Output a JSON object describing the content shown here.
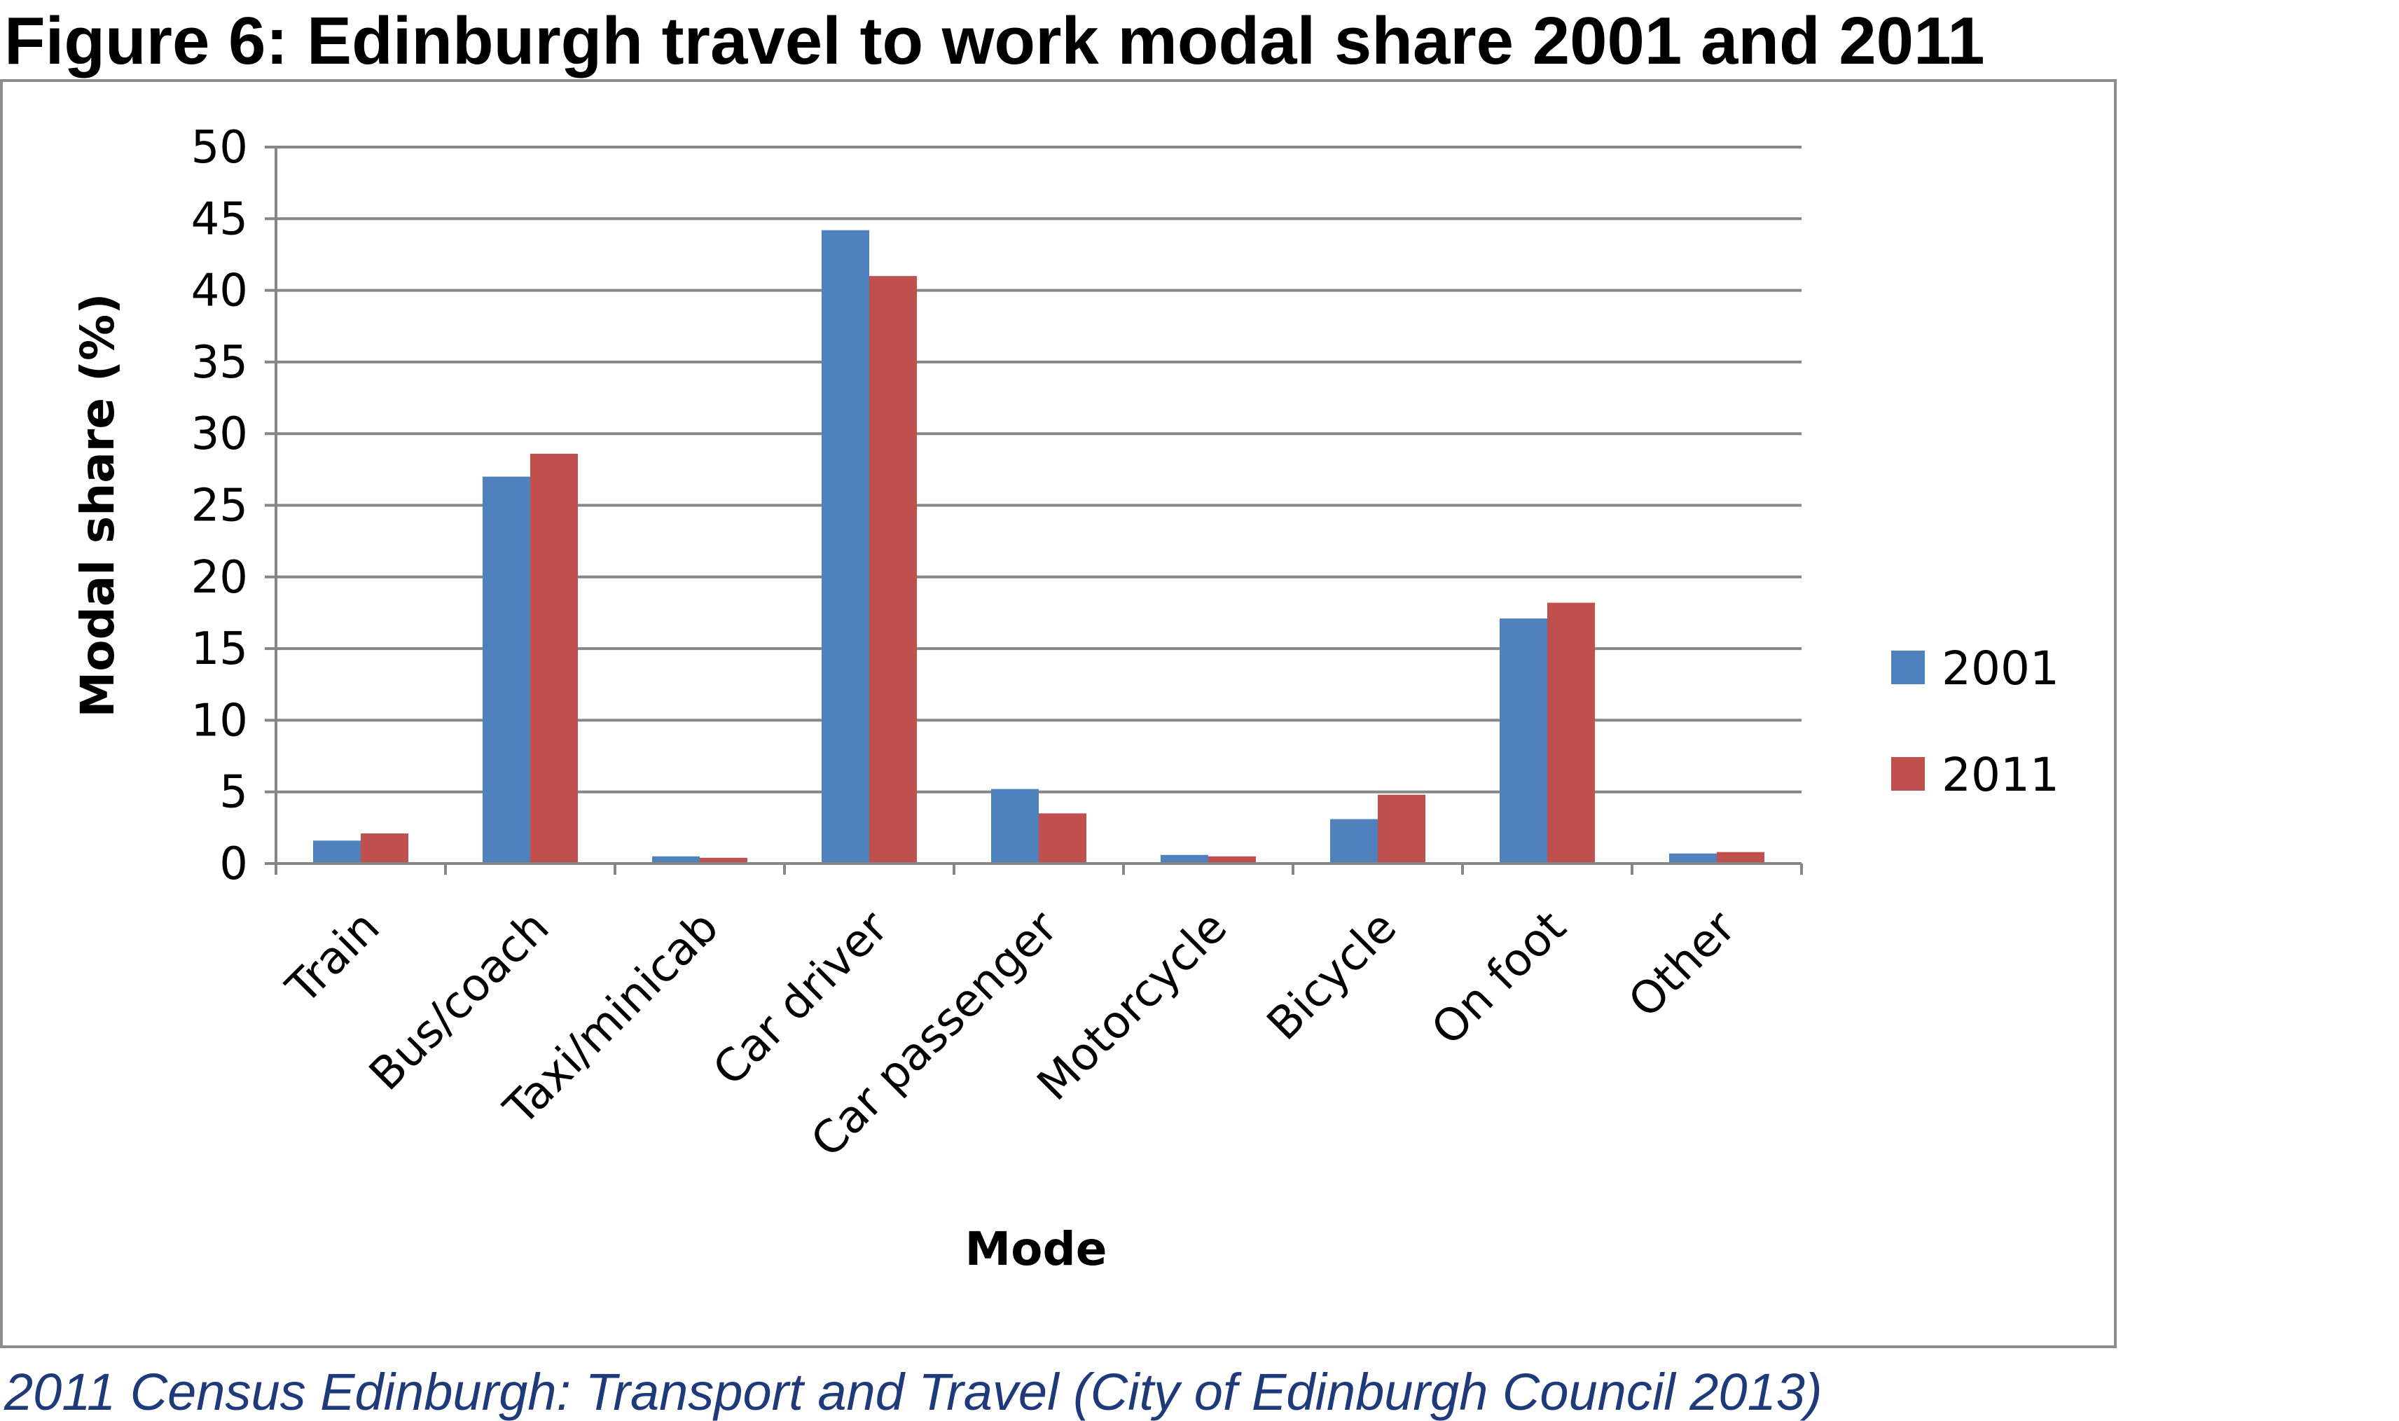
{
  "figure": {
    "title": "Figure 6: Edinburgh travel to work modal share 2001 and 2011",
    "caption": "2011 Census Edinburgh: Transport and Travel (City of Edinburgh Council 2013)",
    "caption_color": "#1f3a7a"
  },
  "chart_data": {
    "type": "bar",
    "title": "",
    "xlabel": "Mode",
    "ylabel": "Modal share (%)",
    "ylim": [
      0,
      50
    ],
    "yticks": [
      0,
      5,
      10,
      15,
      20,
      25,
      30,
      35,
      40,
      45,
      50
    ],
    "grid": true,
    "legend_position": "right",
    "categories": [
      "Train",
      "Bus/coach",
      "Taxi/minicab",
      "Car driver",
      "Car passenger",
      "Motorcycle",
      "Bicycle",
      "On foot",
      "Other"
    ],
    "series": [
      {
        "name": "2001",
        "color": "#4f81bd",
        "values": [
          1.6,
          27.0,
          0.5,
          44.2,
          5.2,
          0.6,
          3.1,
          17.1,
          0.7
        ]
      },
      {
        "name": "2011",
        "color": "#c0504d",
        "values": [
          2.1,
          28.6,
          0.4,
          41.0,
          3.5,
          0.5,
          4.8,
          18.2,
          0.8
        ]
      }
    ]
  }
}
